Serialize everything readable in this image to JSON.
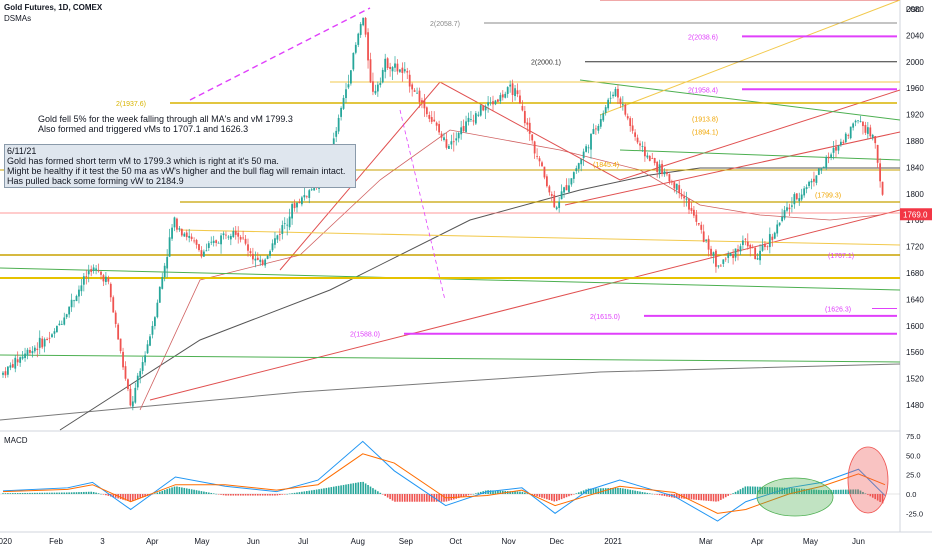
{
  "header": {
    "title": "Gold Futures, 1D, COMEX",
    "indicator": "DSMAs"
  },
  "notes": {
    "note1": [
      "Gold fell 5% for the week falling through all MA's and vM 1799.3",
      "Also formed and triggered vMs to 1707.1 and 1626.3"
    ],
    "note2": [
      "6/11/21",
      "Gold has formed short term vM to 1799.3 which is right at it's 50 ma.",
      "Might be healthy if it test the 50 ma as vW's higher and the bull flag will remain intact.",
      "Has pulled back some forming vW to 2184.9"
    ]
  },
  "colors": {
    "up": "#26a69a",
    "down": "#ef5350",
    "magenta": "#e040fb",
    "orange_label": "#f0a500",
    "price_badge": "#f23645",
    "macd_line": "#2196f3",
    "signal_line": "#ff6d00",
    "hist_pos": "#26a69a",
    "hist_neg": "#ef5350"
  },
  "chart_data": [
    {
      "type": "candlestick",
      "title": "Gold Futures, 1D, COMEX",
      "ylabel": "USD",
      "ylim": [
        1440,
        2080
      ],
      "y_ticks": [
        2080,
        2040,
        2000,
        1960,
        1920,
        1880,
        1840,
        1800,
        1760,
        1720,
        1680,
        1640,
        1600,
        1560,
        1520,
        1480
      ],
      "x_tick_labels": [
        "2020",
        "Feb",
        "3",
        "Apr",
        "May",
        "Jun",
        "Jul",
        "Aug",
        "Sep",
        "Oct",
        "Nov",
        "Dec",
        "2021",
        "Mar",
        "Apr",
        "May",
        "Jun"
      ],
      "last_price": "1769.0",
      "unit_label": "USD",
      "close_path": [
        [
          "2020-01-02",
          1528
        ],
        [
          "2020-01-15",
          1558
        ],
        [
          "2020-02-01",
          1585
        ],
        [
          "2020-02-24",
          1688
        ],
        [
          "2020-03-05",
          1670
        ],
        [
          "2020-03-19",
          1475
        ],
        [
          "2020-04-01",
          1600
        ],
        [
          "2020-04-14",
          1760
        ],
        [
          "2020-05-01",
          1710
        ],
        [
          "2020-05-20",
          1750
        ],
        [
          "2020-06-05",
          1690
        ],
        [
          "2020-06-25",
          1780
        ],
        [
          "2020-07-15",
          1830
        ],
        [
          "2020-08-06",
          2070
        ],
        [
          "2020-08-12",
          1950
        ],
        [
          "2020-08-20",
          2000
        ],
        [
          "2020-09-01",
          1980
        ],
        [
          "2020-09-25",
          1875
        ],
        [
          "2020-10-15",
          1925
        ],
        [
          "2020-11-05",
          1960
        ],
        [
          "2020-11-30",
          1780
        ],
        [
          "2020-12-15",
          1850
        ],
        [
          "2021-01-05",
          1960
        ],
        [
          "2021-01-20",
          1870
        ],
        [
          "2021-02-15",
          1800
        ],
        [
          "2021-03-08",
          1690
        ],
        [
          "2021-03-25",
          1730
        ],
        [
          "2021-04-01",
          1700
        ],
        [
          "2021-04-20",
          1780
        ],
        [
          "2021-05-10",
          1840
        ],
        [
          "2021-06-01",
          1915
        ],
        [
          "2021-06-11",
          1880
        ],
        [
          "2021-06-17",
          1769
        ]
      ],
      "annotations": [
        {
          "label": "2(2058.7)",
          "value": 2058.7
        },
        {
          "label": "2(2038.6)",
          "value": 2038.6
        },
        {
          "label": "2(2000.1)",
          "value": 2000.1
        },
        {
          "label": "2(1958.4)",
          "value": 1958.4
        },
        {
          "label": "2(1937.6)",
          "value": 1937.6
        },
        {
          "label": "(1913.8)",
          "value": 1913.8
        },
        {
          "label": "(1894.1)",
          "value": 1894.1
        },
        {
          "label": "(1845.4)",
          "value": 1845.4
        },
        {
          "label": "(1799.3)",
          "value": 1799.3
        },
        {
          "label": "(1707.1)",
          "value": 1707.1
        },
        {
          "label": "(1626.3)",
          "value": 1626.3
        },
        {
          "label": "2(1615.0)",
          "value": 1615.0
        },
        {
          "label": "2(1588.0)",
          "value": 1588.0
        }
      ]
    },
    {
      "type": "line",
      "title": "MACD",
      "ylim": [
        -40,
        75
      ],
      "y_ticks": [
        "75.0",
        "50.0",
        "25.0",
        "0.0",
        "-25.0"
      ],
      "macd_path": [
        [
          "2020-01-02",
          4
        ],
        [
          "2020-02-10",
          8
        ],
        [
          "2020-02-25",
          15
        ],
        [
          "2020-03-19",
          -20
        ],
        [
          "2020-04-15",
          22
        ],
        [
          "2020-05-15",
          10
        ],
        [
          "2020-06-15",
          3
        ],
        [
          "2020-07-10",
          18
        ],
        [
          "2020-08-06",
          68
        ],
        [
          "2020-08-25",
          30
        ],
        [
          "2020-09-25",
          -15
        ],
        [
          "2020-10-20",
          3
        ],
        [
          "2020-11-10",
          8
        ],
        [
          "2020-11-30",
          -25
        ],
        [
          "2020-12-20",
          5
        ],
        [
          "2021-01-08",
          18
        ],
        [
          "2021-02-10",
          -3
        ],
        [
          "2021-03-08",
          -35
        ],
        [
          "2021-03-25",
          -10
        ],
        [
          "2021-04-20",
          8
        ],
        [
          "2021-05-10",
          15
        ],
        [
          "2021-06-01",
          32
        ],
        [
          "2021-06-17",
          -2
        ]
      ],
      "signal_path": [
        [
          "2020-01-02",
          3
        ],
        [
          "2020-02-10",
          6
        ],
        [
          "2020-02-25",
          12
        ],
        [
          "2020-03-19",
          -10
        ],
        [
          "2020-04-15",
          12
        ],
        [
          "2020-05-15",
          12
        ],
        [
          "2020-06-15",
          5
        ],
        [
          "2020-07-10",
          12
        ],
        [
          "2020-08-06",
          52
        ],
        [
          "2020-08-25",
          40
        ],
        [
          "2020-09-25",
          -5
        ],
        [
          "2020-10-20",
          -2
        ],
        [
          "2020-11-10",
          5
        ],
        [
          "2020-11-30",
          -15
        ],
        [
          "2020-12-20",
          -2
        ],
        [
          "2021-01-08",
          10
        ],
        [
          "2021-02-10",
          2
        ],
        [
          "2021-03-08",
          -25
        ],
        [
          "2021-03-25",
          -20
        ],
        [
          "2021-04-20",
          0
        ],
        [
          "2021-05-10",
          10
        ],
        [
          "2021-06-01",
          26
        ],
        [
          "2021-06-17",
          12
        ]
      ]
    }
  ]
}
